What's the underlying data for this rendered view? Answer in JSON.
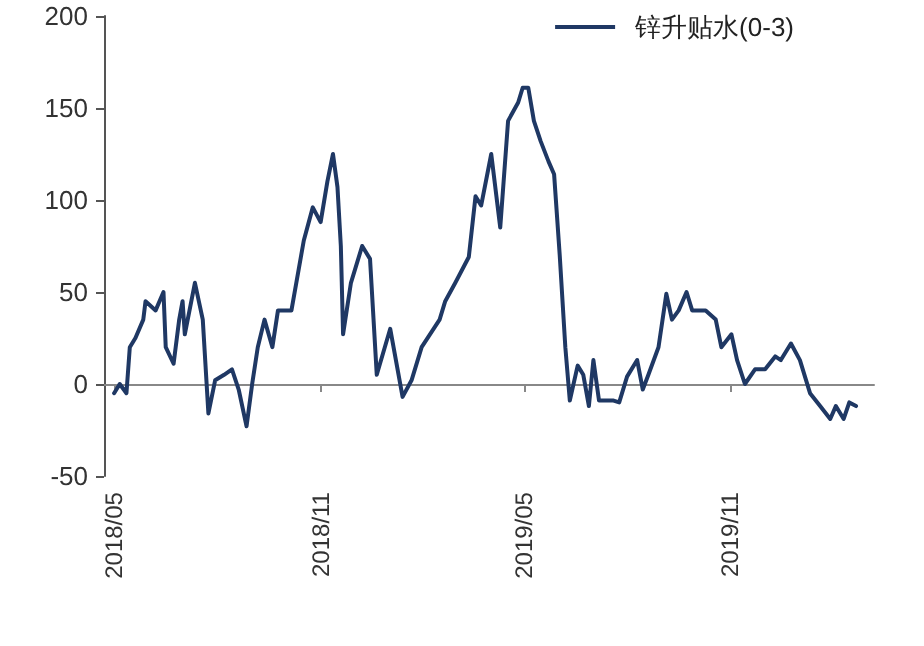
{
  "chart_data": {
    "type": "line",
    "legend": "top right",
    "marker": "none",
    "line_style": "solid",
    "xlim": [
      "2018-04-22",
      "2020-03-08"
    ],
    "xticks": [
      {
        "value": "2018-05-01",
        "label": "2018/05"
      },
      {
        "value": "2018-11-01",
        "label": "2018/11"
      },
      {
        "value": "2019-05-01",
        "label": "2019/05"
      },
      {
        "value": "2019-11-01",
        "label": "2019/11"
      }
    ],
    "ylim": [
      -50,
      200
    ],
    "yticks": [
      -50,
      0,
      50,
      100,
      150,
      200
    ],
    "x": [
      "2018-05-01",
      "2018-05-06",
      "2018-05-12",
      "2018-05-15",
      "2018-05-20",
      "2018-05-27",
      "2018-05-29",
      "2018-06-07",
      "2018-06-14",
      "2018-06-16",
      "2018-06-23",
      "2018-06-28",
      "2018-07-01",
      "2018-07-03",
      "2018-07-12",
      "2018-07-19",
      "2018-07-24",
      "2018-07-30",
      "2018-08-07",
      "2018-08-14",
      "2018-08-20",
      "2018-08-27",
      "2018-09-01",
      "2018-09-06",
      "2018-09-12",
      "2018-09-19",
      "2018-09-24",
      "2018-10-06",
      "2018-10-17",
      "2018-10-25",
      "2018-11-01",
      "2018-11-07",
      "2018-11-12",
      "2018-11-16",
      "2018-11-19",
      "2018-11-21",
      "2018-11-28",
      "2018-12-08",
      "2018-12-15",
      "2018-12-21",
      "2019-01-02",
      "2019-01-13",
      "2019-01-21",
      "2019-01-30",
      "2019-02-15",
      "2019-02-20",
      "2019-03-01",
      "2019-03-13",
      "2019-03-19",
      "2019-03-24",
      "2019-04-02",
      "2019-04-10",
      "2019-04-17",
      "2019-04-26",
      "2019-04-30",
      "2019-05-05",
      "2019-05-10",
      "2019-05-16",
      "2019-05-23",
      "2019-05-28",
      "2019-06-02",
      "2019-06-07",
      "2019-06-11",
      "2019-06-18",
      "2019-06-23",
      "2019-06-28",
      "2019-07-02",
      "2019-07-07",
      "2019-07-20",
      "2019-07-25",
      "2019-08-01",
      "2019-08-10",
      "2019-08-15",
      "2019-08-20",
      "2019-08-29",
      "2019-09-05",
      "2019-09-10",
      "2019-09-16",
      "2019-09-23",
      "2019-09-28",
      "2019-10-10",
      "2019-10-19",
      "2019-10-24",
      "2019-11-02",
      "2019-11-07",
      "2019-11-14",
      "2019-11-23",
      "2019-12-02",
      "2019-12-11",
      "2019-12-16",
      "2019-12-25",
      "2020-01-02",
      "2020-01-11",
      "2020-01-20",
      "2020-01-29",
      "2020-02-03",
      "2020-02-10",
      "2020-02-15",
      "2020-02-21"
    ],
    "series": [
      {
        "name": "锌升贴水(0-3)",
        "color": "#1f3864",
        "values": [
          -5,
          0,
          -5,
          20,
          25,
          35,
          45,
          40,
          50,
          20,
          11,
          35,
          45,
          27,
          55,
          35,
          -16,
          2,
          5,
          8,
          -3,
          -23,
          0,
          20,
          35,
          20,
          40,
          40,
          78,
          96,
          88,
          110,
          125,
          107,
          75,
          27,
          55,
          75,
          68,
          5,
          30,
          -7,
          2,
          20,
          35,
          45,
          55,
          69,
          102,
          97,
          125,
          85,
          143,
          153,
          161,
          161,
          143,
          132,
          121,
          114,
          70,
          20,
          -9,
          10,
          5,
          -12,
          13,
          -9,
          -9,
          -10,
          4,
          13,
          -3,
          5,
          20,
          49,
          35,
          40,
          50,
          40,
          40,
          35,
          20,
          27,
          13,
          0,
          8,
          8,
          15,
          13,
          22,
          13,
          -5,
          -12,
          -19,
          -12,
          -19,
          -10,
          -12
        ]
      }
    ]
  }
}
